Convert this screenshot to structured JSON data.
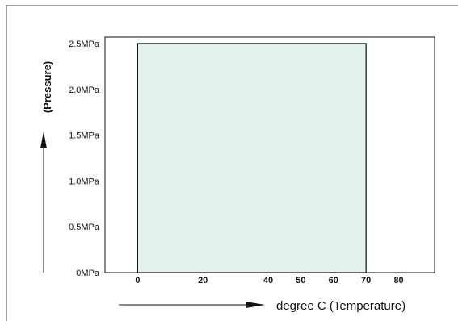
{
  "chart_data": {
    "type": "area",
    "xlabel": "degree C (Temperature)",
    "ylabel": "(Pressure)",
    "x_ticks": [
      {
        "value": 0,
        "label": "0"
      },
      {
        "value": 20,
        "label": "20"
      },
      {
        "value": 40,
        "label": "40"
      },
      {
        "value": 50,
        "label": "50"
      },
      {
        "value": 60,
        "label": "60"
      },
      {
        "value": 70,
        "label": "70"
      },
      {
        "value": 80,
        "label": "80"
      }
    ],
    "y_ticks": [
      {
        "value": 0,
        "label": "0MPa"
      },
      {
        "value": 0.5,
        "label": "0.5MPa"
      },
      {
        "value": 1.0,
        "label": "1.0MPa"
      },
      {
        "value": 1.5,
        "label": "1.5MPa"
      },
      {
        "value": 2.0,
        "label": "2.0MPa"
      },
      {
        "value": 2.5,
        "label": "2.5MPa"
      }
    ],
    "xlim": [
      -10,
      91
    ],
    "ylim": [
      0,
      2.57
    ],
    "series": [
      {
        "x": [
          0,
          70
        ],
        "y": [
          2.5,
          2.5
        ],
        "fill_to": 0
      }
    ],
    "grid": false,
    "legend": "none",
    "colors": {
      "fill": "#e3f3f0",
      "stroke": "#111111",
      "frame": "#444444"
    }
  }
}
